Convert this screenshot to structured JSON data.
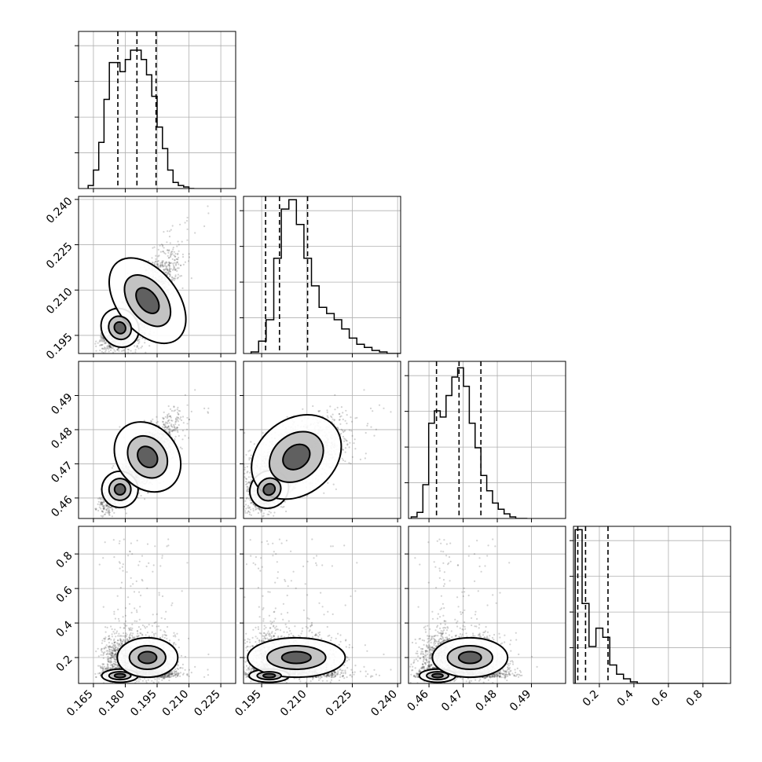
{
  "chart_data": {
    "type": "corner",
    "parameters": [
      "",
      "",
      "",
      ""
    ],
    "axis_ranges": [
      [
        0.158,
        0.232
      ],
      [
        0.189,
        0.241
      ],
      [
        0.454,
        0.5
      ],
      [
        0.05,
        0.96
      ]
    ],
    "ticks": [
      {
        "values": [
          0.165,
          0.18,
          0.195,
          0.21,
          0.225
        ],
        "labels": [
          "0.165",
          "0.180",
          "0.195",
          "0.210",
          "0.225"
        ]
      },
      {
        "values": [
          0.195,
          0.21,
          0.225,
          0.24
        ],
        "labels": [
          "0.195",
          "0.210",
          "0.225",
          "0.240"
        ]
      },
      {
        "values": [
          0.46,
          0.47,
          0.48,
          0.49
        ],
        "labels": [
          "0.46",
          "0.47",
          "0.48",
          "0.49"
        ]
      },
      {
        "values": [
          0.2,
          0.4,
          0.6,
          0.8
        ],
        "labels": [
          "0.2",
          "0.4",
          "0.6",
          "0.8"
        ]
      }
    ],
    "quantiles": [
      [
        0.1765,
        0.1855,
        0.1945
      ],
      [
        0.1963,
        0.2009,
        0.2102
      ],
      [
        0.4622,
        0.4688,
        0.4752
      ],
      [
        0.075,
        0.12,
        0.25
      ]
    ],
    "histograms": [
      {
        "start": 0.1625,
        "width": 0.0025,
        "counts": [
          2,
          12,
          30,
          58,
          82,
          82,
          76,
          84,
          90,
          90,
          84,
          74,
          60,
          40,
          26,
          12,
          4,
          2,
          1,
          0
        ]
      },
      {
        "start": 0.1915,
        "width": 0.0025,
        "counts": [
          1,
          8,
          22,
          62,
          94,
          100,
          84,
          62,
          44,
          30,
          26,
          22,
          16,
          10,
          6,
          4,
          2,
          1,
          0,
          0
        ]
      },
      {
        "start": 0.4548,
        "width": 0.0017,
        "counts": [
          1,
          4,
          22,
          62,
          70,
          66,
          80,
          92,
          98,
          86,
          62,
          46,
          28,
          18,
          10,
          6,
          3,
          1,
          0,
          0
        ]
      },
      {
        "start": 0.06,
        "width": 0.04,
        "counts": [
          100,
          52,
          24,
          36,
          30,
          12,
          6,
          3,
          1,
          0,
          0,
          0,
          0,
          0,
          0,
          0,
          0,
          0,
          0,
          0,
          0,
          0
        ]
      }
    ],
    "histogram_ylim": [
      0,
      92
    ],
    "grid": true,
    "colors": {
      "points": "#333333",
      "lines": "#000000",
      "grid": "#b0b0b0"
    }
  }
}
